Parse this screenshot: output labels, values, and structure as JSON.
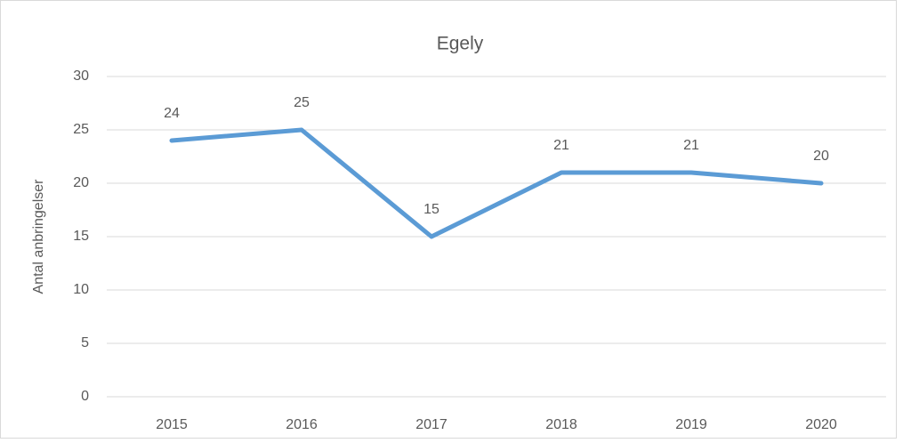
{
  "chart_data": {
    "type": "line",
    "title": "Egely",
    "y_label": "Antal anbringelser",
    "categories": [
      "2015",
      "2016",
      "2017",
      "2018",
      "2019",
      "2020"
    ],
    "series": [
      {
        "name": "Egely",
        "color": "#5b9bd5",
        "values": [
          24,
          25,
          15,
          21,
          21,
          20
        ]
      }
    ],
    "ylim": [
      0,
      30
    ],
    "yticks": [
      0,
      5,
      10,
      15,
      20,
      25,
      30
    ],
    "grid": true,
    "data_labels": true
  }
}
